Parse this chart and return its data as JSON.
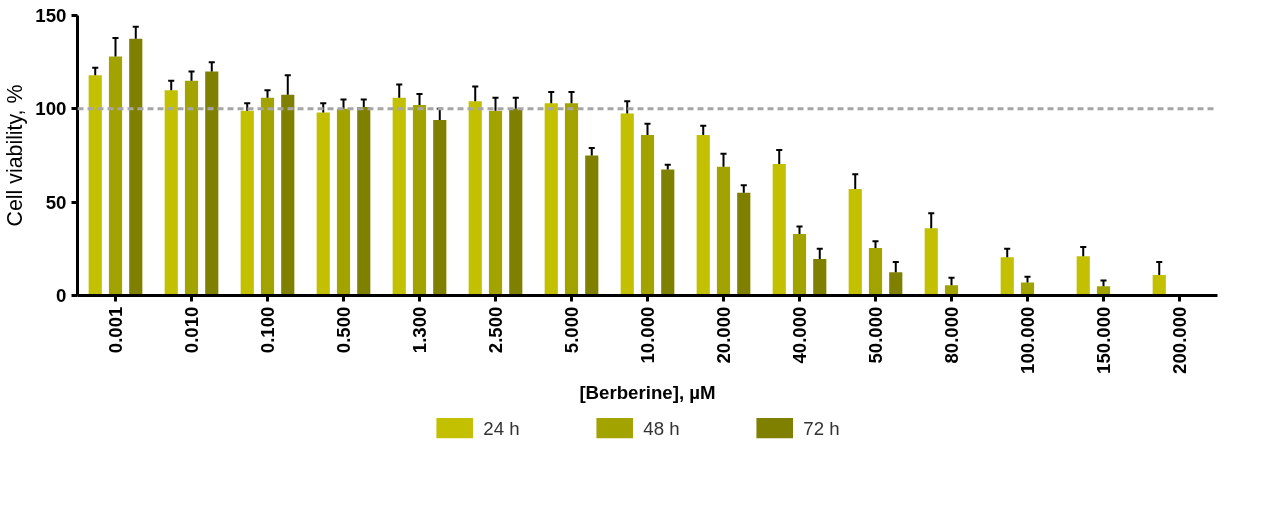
{
  "chart_data": {
    "type": "bar",
    "xlabel": "[Berberine], µM",
    "ylabel": "Cell viability, %",
    "categories": [
      "0.001",
      "0.010",
      "0.100",
      "0.500",
      "1.300",
      "2.500",
      "5.000",
      "10.000",
      "20.000",
      "40.000",
      "50.000",
      "80.000",
      "100.000",
      "150.000",
      "200.000"
    ],
    "series": [
      {
        "name": "24 h",
        "color": "#c2c000",
        "values": [
          118,
          110,
          99,
          98,
          106,
          104,
          103,
          97.5,
          86,
          70.5,
          57,
          36,
          20.5,
          21,
          11
        ],
        "errors": [
          [
            118,
            122
          ],
          [
            110,
            115
          ],
          [
            99,
            103
          ],
          [
            98,
            103
          ],
          [
            106,
            113
          ],
          [
            104,
            112
          ],
          [
            103,
            109
          ],
          [
            97.5,
            104
          ],
          [
            86,
            91
          ],
          [
            70.5,
            78
          ],
          [
            57,
            65
          ],
          [
            36,
            44
          ],
          [
            20.5,
            25
          ],
          [
            21,
            26
          ],
          [
            11,
            18
          ]
        ]
      },
      {
        "name": "48 h",
        "color": "#a3a300",
        "values": [
          128,
          115,
          106,
          100,
          102,
          99,
          103,
          86,
          69,
          33,
          25.5,
          5.5,
          7,
          5,
          null
        ],
        "errors": [
          [
            128,
            138
          ],
          [
            115,
            120
          ],
          [
            106,
            110
          ],
          [
            100,
            105
          ],
          [
            102,
            108
          ],
          [
            99,
            106
          ],
          [
            103,
            109
          ],
          [
            86,
            92
          ],
          [
            69,
            76
          ],
          [
            33,
            37
          ],
          [
            25.5,
            29
          ],
          [
            5.5,
            9.5
          ],
          [
            7,
            10
          ],
          [
            5,
            8
          ],
          null
        ]
      },
      {
        "name": "72 h",
        "color": "#808000",
        "values": [
          137.5,
          120,
          107.5,
          101,
          94,
          100,
          75,
          67.5,
          55,
          19.5,
          12.5,
          null,
          null,
          null,
          null
        ],
        "errors": [
          [
            137.5,
            144
          ],
          [
            120,
            125
          ],
          [
            107.5,
            118
          ],
          [
            101,
            105
          ],
          [
            94,
            100
          ],
          [
            100,
            106
          ],
          [
            75,
            79
          ],
          [
            67.5,
            70
          ],
          [
            55,
            59
          ],
          [
            19.5,
            25
          ],
          [
            12.5,
            18
          ],
          null,
          null,
          null,
          null
        ]
      }
    ],
    "ylim": [
      0,
      150
    ],
    "yticks": [
      0,
      50,
      100,
      150
    ],
    "ref_lines": [
      {
        "axis": "y",
        "value": 100,
        "color": "#a6a6a6",
        "line_style": "dashed"
      }
    ],
    "grid": false,
    "legend": "bottom"
  }
}
